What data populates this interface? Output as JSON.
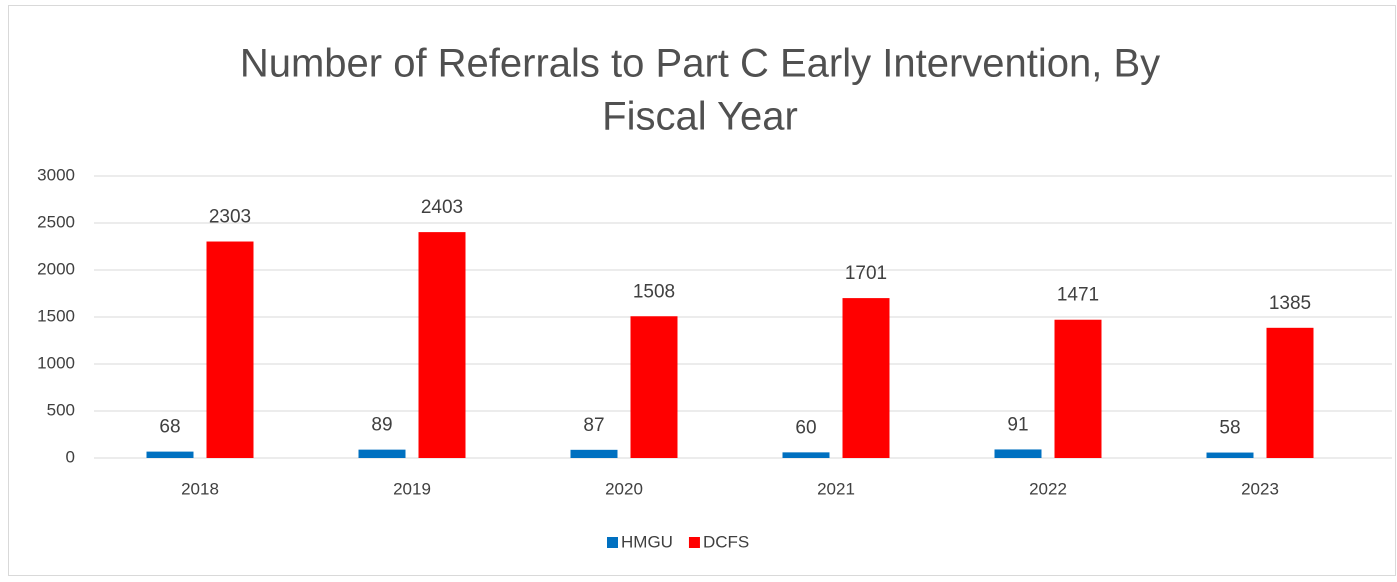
{
  "chart_data": {
    "type": "bar",
    "title_lines": [
      "Number of Referrals to Part C Early Intervention, By",
      "Fiscal Year"
    ],
    "categories": [
      "2018",
      "2019",
      "2020",
      "2021",
      "2022",
      "2023"
    ],
    "series": [
      {
        "name": "HMGU",
        "color": "#0070c0",
        "values": [
          68,
          89,
          87,
          60,
          91,
          58
        ]
      },
      {
        "name": "DCFS",
        "color": "#ff0000",
        "values": [
          2303,
          2403,
          1508,
          1701,
          1471,
          1385
        ]
      }
    ],
    "ylim": [
      0,
      3000
    ],
    "yticks": [
      0,
      500,
      1000,
      1500,
      2000,
      2500,
      3000
    ],
    "grid": true,
    "legend": "bottom"
  }
}
